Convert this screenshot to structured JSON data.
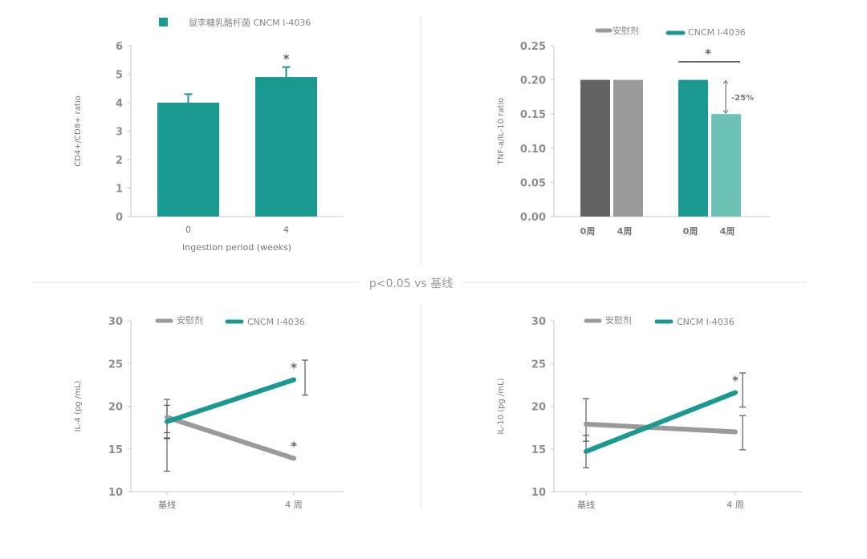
{
  "divider_note": "p<0.05 vs 基线",
  "colors": {
    "teal": "#1a9990",
    "light_teal": "#6cc2b5",
    "dark_gray": "#636363",
    "gray": "#9a9a9a",
    "axis": "#c8c8c8",
    "err": "#666666"
  },
  "chart_data": [
    {
      "id": "cd4-cd8",
      "type": "bar",
      "legend": [
        "鼠李糖乳酪杆菌 CNCM I-4036"
      ],
      "categories": [
        "0",
        "4"
      ],
      "values": [
        4.0,
        4.9
      ],
      "error_upper": [
        4.3,
        5.25
      ],
      "significance": [
        "",
        "*"
      ],
      "xlabel": "Ingestion period (weeks)",
      "ylabel": "CD4+/CD8+ ratio",
      "ylim": [
        0,
        6
      ],
      "yticks": [
        "0",
        "1",
        "2",
        "3",
        "4",
        "5",
        "6"
      ]
    },
    {
      "id": "tnf-il10",
      "type": "bar",
      "legend": [
        "安慰剂",
        "CNCM I-4036"
      ],
      "categories": [
        "0周",
        "4周",
        "0周",
        "4周"
      ],
      "groups": [
        "安慰剂",
        "安慰剂",
        "CNCM I-4036",
        "CNCM I-4036"
      ],
      "values": [
        0.2,
        0.2,
        0.2,
        0.15
      ],
      "annotation": "-25%",
      "significance": "*",
      "ylabel": "TNF-a/IL-10 ratio",
      "ylim": [
        0,
        0.25
      ],
      "yticks": [
        "0.00",
        "0.05",
        "0.10",
        "0.15",
        "0.20",
        "0.25"
      ]
    },
    {
      "id": "il4",
      "type": "line",
      "legend": [
        "安慰剂",
        "CNCM I-4036"
      ],
      "x": [
        "基线",
        "4 周"
      ],
      "series": [
        {
          "name": "安慰剂",
          "values": [
            18.7,
            13.9
          ],
          "err_low": [
            16.9,
            12.4
          ],
          "err_high": [
            20.1,
            16.3
          ],
          "sig": [
            "",
            "*"
          ]
        },
        {
          "name": "CNCM I-4036",
          "values": [
            18.2,
            23.1
          ],
          "err_low": [
            16.2,
            21.3
          ],
          "err_high": [
            20.8,
            25.4
          ],
          "sig": [
            "",
            "*"
          ]
        }
      ],
      "ylabel": "IL-4 (pg /mL)",
      "ylim": [
        10,
        30
      ],
      "yticks": [
        "10",
        "15",
        "20",
        "25",
        "30"
      ]
    },
    {
      "id": "il10",
      "type": "line",
      "legend": [
        "安慰剂",
        "CNCM I-4036"
      ],
      "x": [
        "基线",
        "4 周"
      ],
      "series": [
        {
          "name": "安慰剂",
          "values": [
            17.9,
            17.0
          ],
          "err_low": [
            15.9,
            14.9
          ],
          "err_high": [
            20.9,
            18.9
          ],
          "sig": [
            "",
            ""
          ]
        },
        {
          "name": "CNCM I-4036",
          "values": [
            14.7,
            21.6
          ],
          "err_low": [
            12.8,
            19.9
          ],
          "err_high": [
            16.6,
            23.9
          ],
          "sig": [
            "",
            "*"
          ]
        }
      ],
      "ylabel": "IL-10 (pg /mL)",
      "ylim": [
        10,
        30
      ],
      "yticks": [
        "10",
        "15",
        "20",
        "25",
        "30"
      ]
    }
  ]
}
